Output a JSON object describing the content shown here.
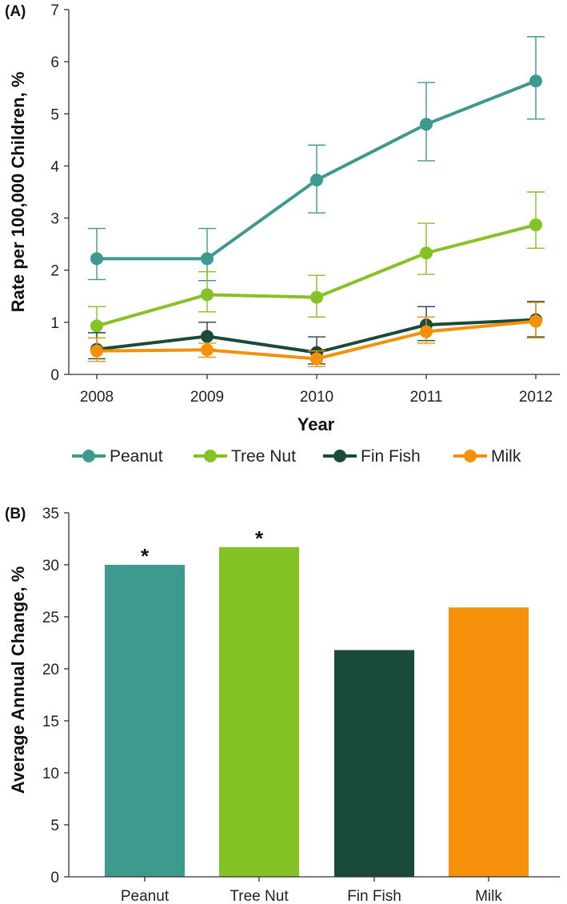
{
  "chart_data": [
    {
      "panel": "(A)",
      "type": "line",
      "xlabel": "Year",
      "ylabel": "Rate per 100,000 Children, %",
      "ylim": [
        0,
        7
      ],
      "yticks": [
        "0",
        "1",
        "2",
        "3",
        "4",
        "5",
        "6",
        "7"
      ],
      "categories": [
        "2008",
        "2009",
        "2010",
        "2011",
        "2012"
      ],
      "legend_position": "bottom",
      "series": [
        {
          "name": "Peanut",
          "color": "#3d9a8f",
          "values": [
            2.22,
            2.22,
            3.73,
            4.8,
            5.63
          ],
          "lower": [
            1.82,
            1.8,
            3.1,
            4.1,
            4.9
          ],
          "upper": [
            2.8,
            2.8,
            4.4,
            5.6,
            6.48
          ]
        },
        {
          "name": "Tree Nut",
          "color": "#84c225",
          "values": [
            0.93,
            1.53,
            1.48,
            2.33,
            2.87
          ],
          "lower": [
            0.7,
            1.2,
            1.1,
            1.92,
            2.42
          ],
          "upper": [
            1.3,
            1.97,
            1.9,
            2.9,
            3.5
          ]
        },
        {
          "name": "Fin Fish",
          "color": "#1a4a38",
          "values": [
            0.48,
            0.73,
            0.42,
            0.95,
            1.05
          ],
          "lower": [
            0.3,
            0.48,
            0.2,
            0.65,
            0.72
          ],
          "upper": [
            0.8,
            1.0,
            0.72,
            1.3,
            1.4
          ]
        },
        {
          "name": "Milk",
          "color": "#f5900a",
          "values": [
            0.45,
            0.47,
            0.3,
            0.82,
            1.02
          ],
          "lower": [
            0.25,
            0.33,
            0.15,
            0.6,
            0.7
          ],
          "upper": [
            0.7,
            0.6,
            0.45,
            1.1,
            1.38
          ]
        }
      ]
    },
    {
      "panel": "(B)",
      "type": "bar",
      "xlabel": "",
      "ylabel": "Average Annual Change, %",
      "ylim": [
        0,
        35
      ],
      "yticks": [
        "0",
        "5",
        "10",
        "15",
        "20",
        "25",
        "30",
        "35"
      ],
      "categories": [
        "Peanut",
        "Tree Nut",
        "Fin Fish",
        "Milk"
      ],
      "values": [
        30.0,
        31.7,
        21.8,
        25.9
      ],
      "colors": [
        "#3d9a8f",
        "#84c225",
        "#1a4a38",
        "#f5900a"
      ],
      "annotations": [
        "*",
        "*",
        "",
        ""
      ]
    }
  ]
}
